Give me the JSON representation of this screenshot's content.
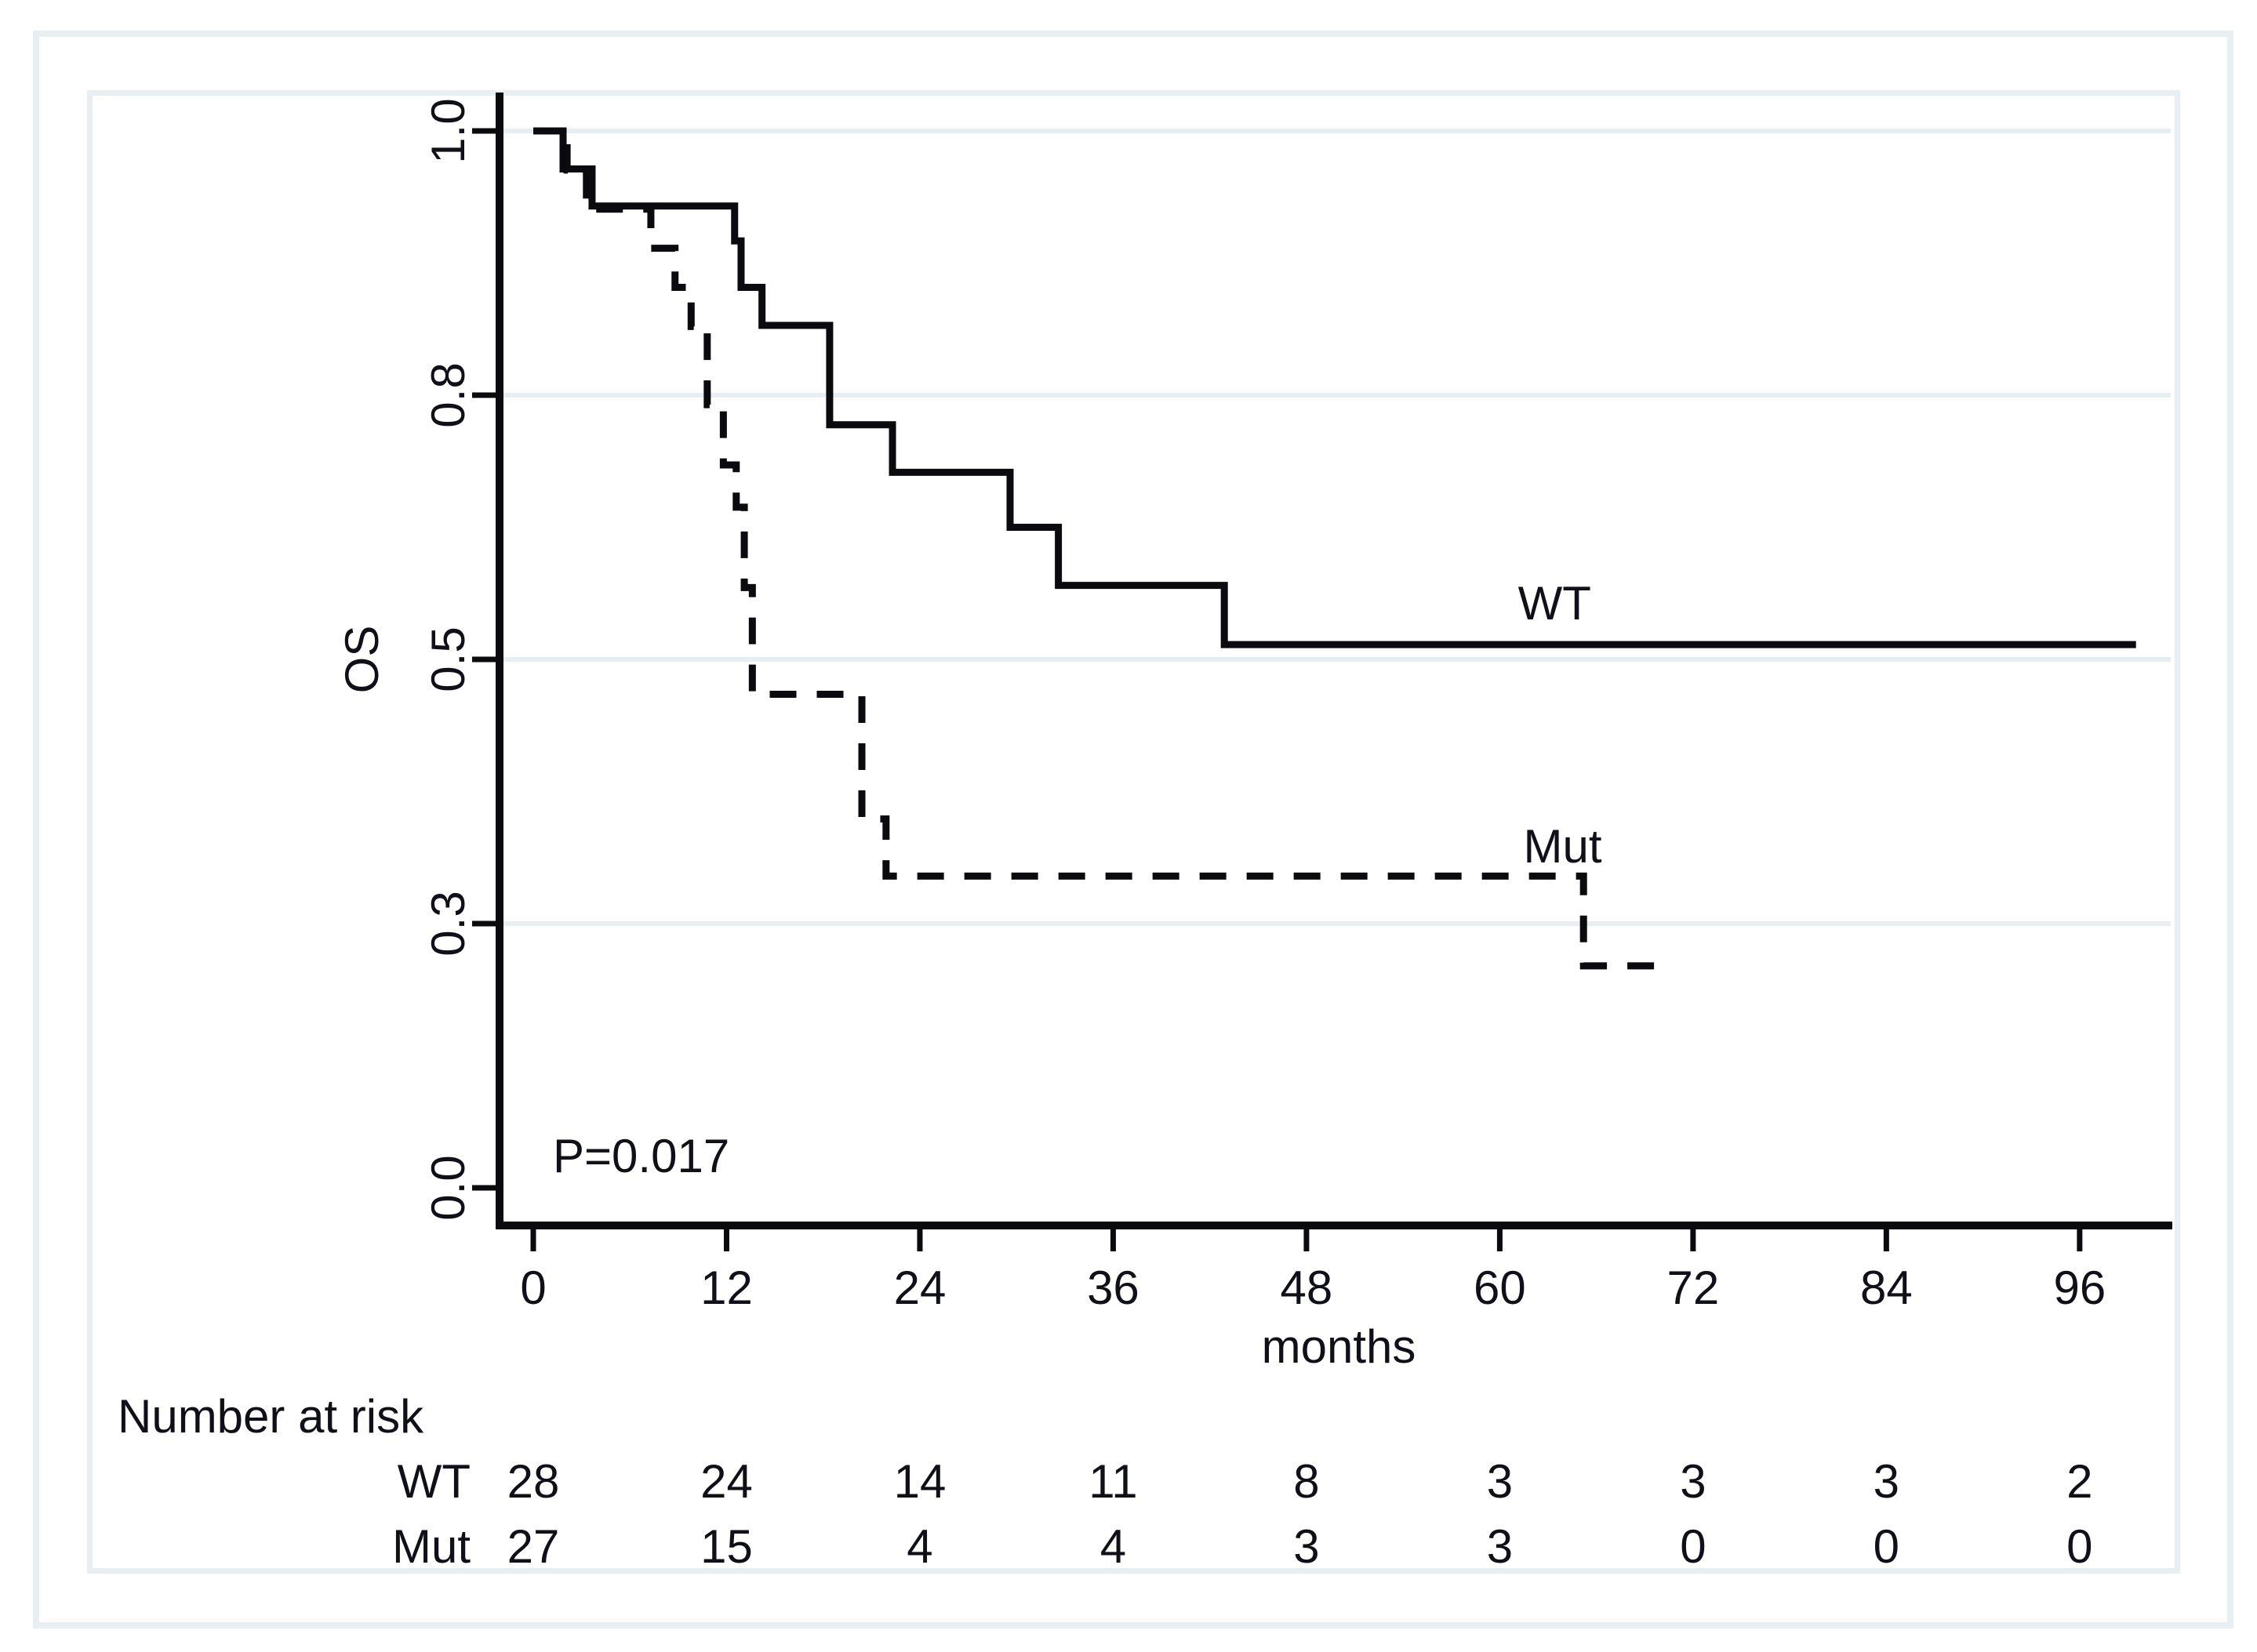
{
  "chart_data": {
    "type": "line",
    "subtype": "kaplan-meier-step",
    "title": "",
    "xlabel": "months",
    "ylabel": "OS",
    "annotation": "P=0.017",
    "annotation_pos": {
      "month": 1.2,
      "value": 0.03
    },
    "xlim": [
      0,
      101
    ],
    "ylim": [
      0,
      1
    ],
    "x_ticks": [
      0,
      12,
      24,
      36,
      48,
      60,
      72,
      84,
      96
    ],
    "y_ticks": [
      {
        "v": 1.0,
        "label": "1.0"
      },
      {
        "v": 0.75,
        "label": "0.8"
      },
      {
        "v": 0.5,
        "label": "0.5"
      },
      {
        "v": 0.25,
        "label": "0.3"
      },
      {
        "v": 0.0,
        "label": "0.0"
      }
    ],
    "grid_values": [
      1.0,
      0.75,
      0.5,
      0.25
    ],
    "grid_on": true,
    "legend_position": "curve-labels-inline",
    "series": [
      {
        "name": "WT",
        "line": "solid",
        "label": {
          "text": "WT",
          "month": 63.4,
          "value": 0.553
        },
        "steps": [
          [
            0,
            1.0
          ],
          [
            1.85,
            0.964
          ],
          [
            3.65,
            0.929
          ],
          [
            12.5,
            0.896
          ],
          [
            12.9,
            0.852
          ],
          [
            14.2,
            0.816
          ],
          [
            18.4,
            0.722
          ],
          [
            22.3,
            0.677
          ],
          [
            29.6,
            0.625
          ],
          [
            32.6,
            0.57
          ],
          [
            42.9,
            0.514
          ]
        ],
        "end_month": 99.5
      },
      {
        "name": "Mut",
        "line": "dashed",
        "label": {
          "text": "Mut",
          "month": 63.9,
          "value": 0.323
        },
        "steps": [
          [
            0,
            1.0
          ],
          [
            2.1,
            0.963
          ],
          [
            3.3,
            0.926
          ],
          [
            7.3,
            0.889
          ],
          [
            8.8,
            0.852
          ],
          [
            9.8,
            0.815
          ],
          [
            10.8,
            0.741
          ],
          [
            11.8,
            0.684
          ],
          [
            12.6,
            0.644
          ],
          [
            13.1,
            0.568
          ],
          [
            13.6,
            0.467
          ],
          [
            20.4,
            0.349
          ],
          [
            21.9,
            0.295
          ],
          [
            65.2,
            0.21
          ]
        ],
        "end_month": 70.8
      }
    ],
    "risk_table": {
      "title": "Number at risk",
      "time_points": [
        0,
        12,
        24,
        36,
        48,
        60,
        72,
        84,
        96
      ],
      "rows": [
        {
          "label": "WT",
          "counts": [
            "28",
            "24",
            "14",
            "11",
            "8",
            "3",
            "3",
            "3",
            "2"
          ]
        },
        {
          "label": "Mut",
          "counts": [
            "27",
            "15",
            "4",
            "4",
            "3",
            "3",
            "0",
            "0",
            "0"
          ]
        }
      ]
    },
    "colors": {
      "curve": "#0a0a0f",
      "text": "#101018",
      "grid": "#e8eef2",
      "frame": "#e8eef2",
      "background": "#ffffff"
    }
  }
}
